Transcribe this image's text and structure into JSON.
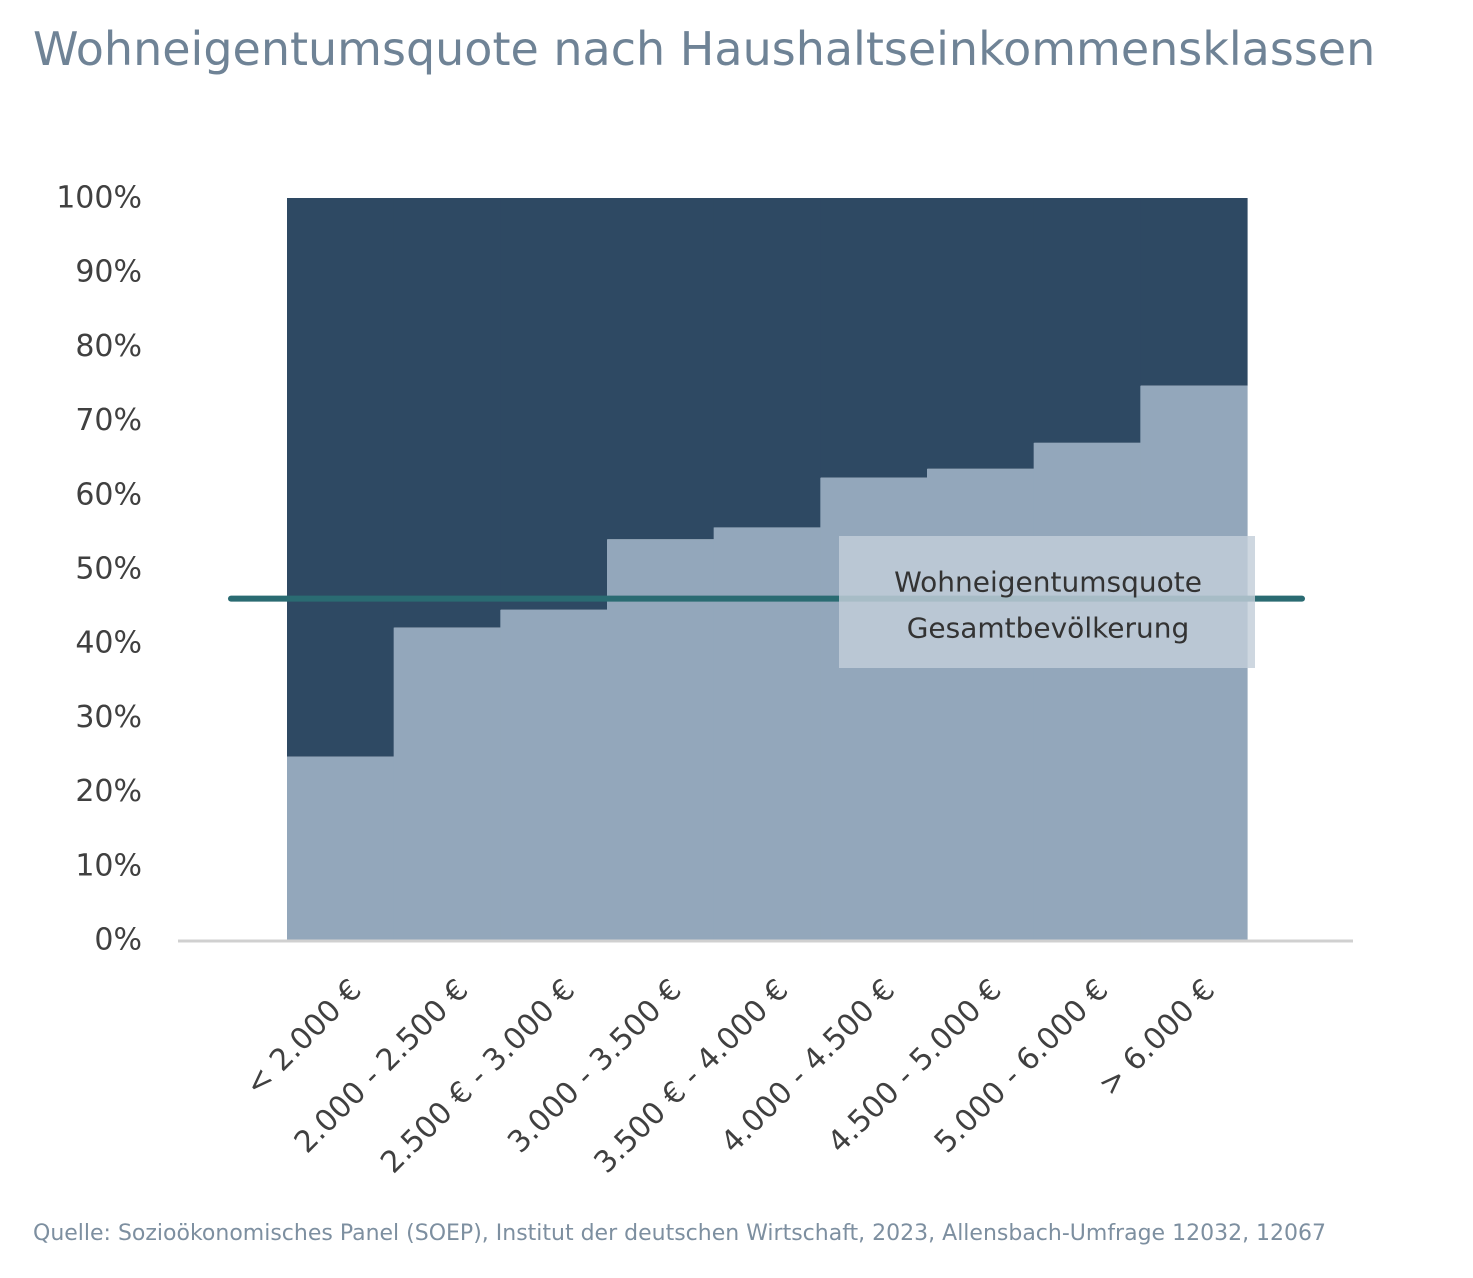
{
  "title": "Wohneigentumsquote nach Haushaltseinkommensklassen",
  "source": "Quelle: Sozioökonomisches Panel (SOEP), Institut der deutschen Wirtschaft, 2023, Allensbach-Umfrage 12032, 12067",
  "colors": {
    "owner": "#93a7bb",
    "non_owner": "#2e4963",
    "reference_line": "#2a6b72",
    "axis": "#d0d0d0",
    "annotation_box": "#c3ced9"
  },
  "chart_data": {
    "type": "area",
    "categories": [
      "< 2.000 €",
      "2.000 - 2.500 €",
      "2.500 € - 3.000 €",
      "3.000 - 3.500 €",
      "3.500 € - 4.000 €",
      "4.000 - 4.500 €",
      "4.500 - 5.000 €",
      "5.000 - 6.000 €",
      "> 6.000 €"
    ],
    "series": [
      {
        "values": [
          24.7,
          42.1,
          44.5,
          54.0,
          55.6,
          62.3,
          63.5,
          67.0,
          74.7
        ]
      }
    ],
    "total": 100,
    "reference_line": {
      "value": 46,
      "label_lines": [
        "Wohneigentumsquote",
        "Gesamtbevölkerung"
      ]
    },
    "yticks": [
      "0%",
      "10%",
      "20%",
      "30%",
      "40%",
      "50%",
      "60%",
      "70%",
      "80%",
      "90%",
      "100%"
    ],
    "ylim": [
      0,
      100
    ],
    "xlabel": "",
    "ylabel": "",
    "grid": false,
    "legend": "none"
  }
}
